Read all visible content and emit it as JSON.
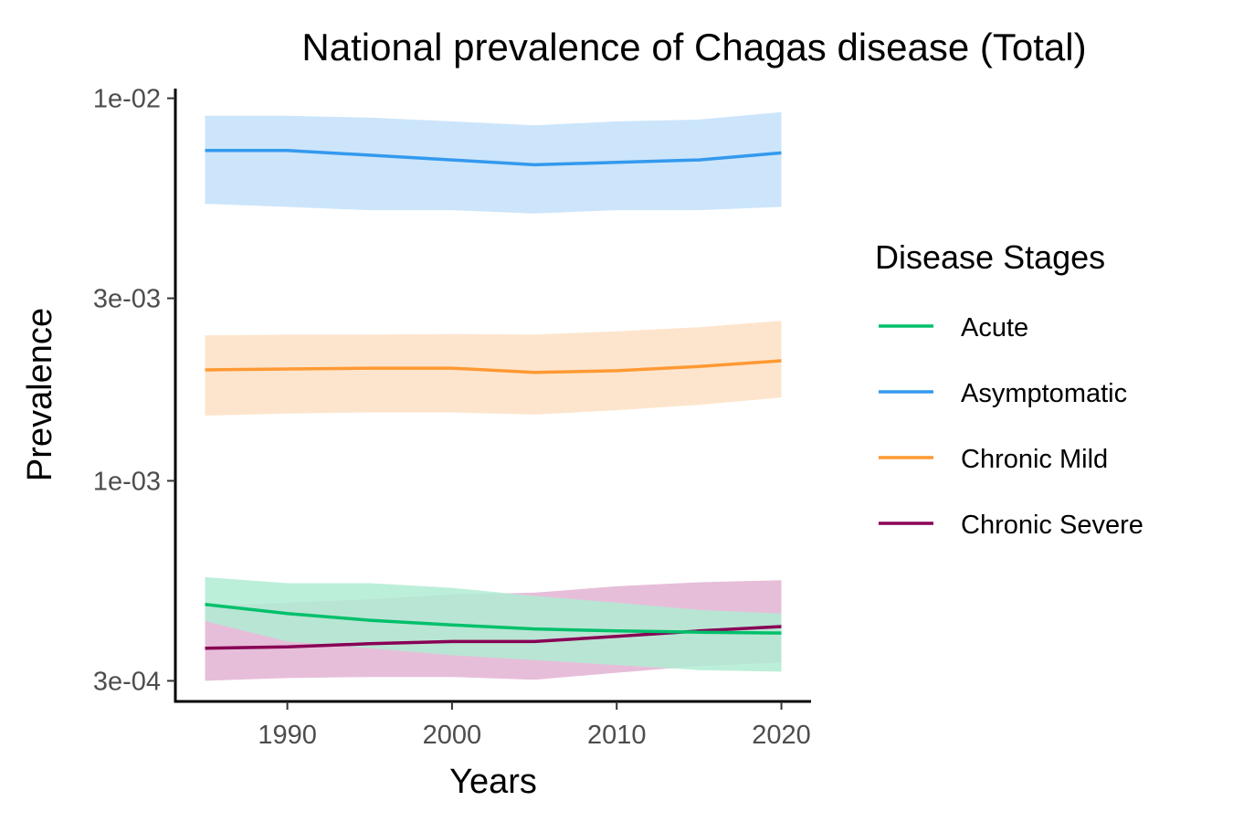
{
  "chart_data": {
    "type": "line",
    "title": "National prevalence of Chagas disease (Total)",
    "xlabel": "Years",
    "ylabel": "Prevalence",
    "y_scale": "log",
    "xlim": [
      1983.2,
      2021.8
    ],
    "ylim": [
      0.000265,
      0.0106
    ],
    "x_ticks": [
      1990,
      2000,
      2010,
      2020
    ],
    "x_tick_labels": [
      "1990",
      "2000",
      "2010",
      "2020"
    ],
    "y_ticks": [
      0.0003,
      0.001,
      0.003,
      0.01
    ],
    "y_tick_labels": [
      "3e-04",
      "1e-03",
      "3e-03",
      "1e-02"
    ],
    "grid": false,
    "legend": {
      "title": "Disease Stages",
      "placement": "right",
      "entries": [
        "Acute",
        "Asymptomatic",
        "Chronic Mild",
        "Chronic Severe"
      ]
    },
    "x": [
      1985,
      1990,
      1995,
      2000,
      2005,
      2010,
      2015,
      2020
    ],
    "series": [
      {
        "name": "Asymptomatic",
        "color": "#3399ee",
        "band_color": "#c3e0fa",
        "values": [
          0.0073,
          0.0073,
          0.0071,
          0.0069,
          0.0067,
          0.0068,
          0.0069,
          0.0072
        ],
        "band_lower": [
          0.0053,
          0.0052,
          0.0051,
          0.0051,
          0.005,
          0.0051,
          0.0051,
          0.0052
        ],
        "band_upper": [
          0.009,
          0.009,
          0.0089,
          0.0087,
          0.0085,
          0.0087,
          0.0088,
          0.0092
        ]
      },
      {
        "name": "Chronic Mild",
        "color": "#ff9933",
        "band_color": "#fde0c4",
        "values": [
          0.00195,
          0.00196,
          0.00197,
          0.00197,
          0.00192,
          0.00194,
          0.00199,
          0.00206
        ],
        "band_lower": [
          0.00148,
          0.0015,
          0.00151,
          0.00151,
          0.00149,
          0.00153,
          0.00158,
          0.00165
        ],
        "band_upper": [
          0.0024,
          0.00241,
          0.00241,
          0.00242,
          0.00241,
          0.00246,
          0.00252,
          0.00262
        ]
      },
      {
        "name": "Chronic Severe",
        "color": "#880055",
        "band_color": "#e3b3d2",
        "values": [
          0.000365,
          0.000368,
          0.000375,
          0.00038,
          0.00038,
          0.000392,
          0.000405,
          0.000416
        ],
        "band_lower": [
          0.0003,
          0.000305,
          0.000307,
          0.000307,
          0.000302,
          0.000315,
          0.000328,
          0.000335
        ],
        "band_upper": [
          0.00047,
          0.00048,
          0.00049,
          0.000505,
          0.00051,
          0.00053,
          0.000543,
          0.00055
        ]
      },
      {
        "name": "Acute",
        "color": "#00c06a",
        "band_color": "#b0ecd2",
        "values": [
          0.000475,
          0.00045,
          0.000432,
          0.00042,
          0.00041,
          0.000405,
          0.000402,
          0.0004
        ],
        "band_lower": [
          0.00043,
          0.00038,
          0.000365,
          0.00035,
          0.00034,
          0.00033,
          0.00032,
          0.000317
        ],
        "band_upper": [
          0.00056,
          0.00054,
          0.00054,
          0.000525,
          0.0005,
          0.00048,
          0.00046,
          0.00045
        ]
      }
    ]
  }
}
